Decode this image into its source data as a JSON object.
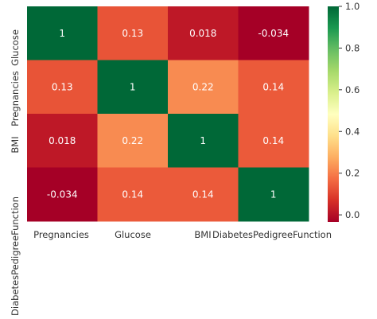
{
  "chart_data": {
    "type": "heatmap",
    "title": "",
    "row_labels": [
      "Pregnancies",
      "Glucose",
      "BMI",
      "DiabetesPedigreeFunction"
    ],
    "column_labels": [
      "Pregnancies",
      "Glucose",
      "BMI",
      "DiabetesPedigreeFunction"
    ],
    "values": [
      [
        1,
        0.13,
        0.018,
        -0.034
      ],
      [
        0.13,
        1,
        0.22,
        0.14
      ],
      [
        0.018,
        0.22,
        1,
        0.14
      ],
      [
        -0.034,
        0.14,
        0.14,
        1
      ]
    ],
    "cell_text": [
      [
        "1",
        "0.13",
        "0.018",
        "-0.034"
      ],
      [
        "0.13",
        "1",
        "0.22",
        "0.14"
      ],
      [
        "0.018",
        "0.22",
        "1",
        "0.14"
      ],
      [
        "-0.034",
        "0.14",
        "0.14",
        "1"
      ]
    ],
    "colormap": "RdYlGn",
    "colorbar": {
      "range": [
        -0.034,
        1.0
      ],
      "ticks": [
        0.0,
        0.2,
        0.4,
        0.6,
        0.8,
        1.0
      ],
      "tick_labels": [
        "0.0",
        "0.2",
        "0.4",
        "0.6",
        "0.8",
        "1.0"
      ]
    },
    "annotations": true
  }
}
